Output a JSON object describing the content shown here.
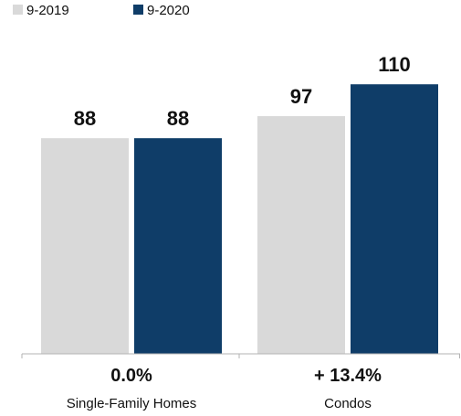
{
  "chart_data": {
    "type": "bar",
    "categories": [
      "Single-Family Homes",
      "Condos"
    ],
    "series": [
      {
        "name": "9-2019",
        "values": [
          88,
          97
        ],
        "color": "#d9d9d9"
      },
      {
        "name": "9-2020",
        "values": [
          88,
          110
        ],
        "color": "#0f3d68"
      }
    ],
    "value_labels": [
      [
        "88",
        "97"
      ],
      [
        "88",
        "110"
      ]
    ],
    "change_labels": [
      "0.0%",
      "+ 13.4%"
    ],
    "legend_position": "top-left",
    "grid": false,
    "ylim": [
      0,
      130
    ]
  }
}
